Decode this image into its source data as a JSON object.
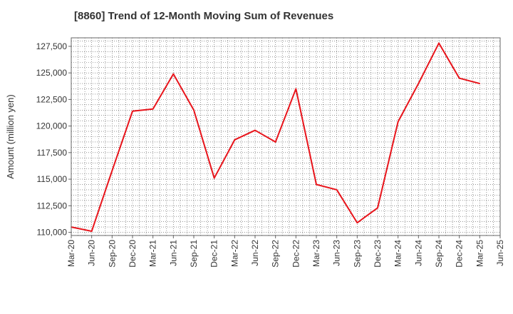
{
  "chart_data": {
    "type": "line",
    "title": "[8860]  Trend of 12-Month Moving Sum of Revenues",
    "ylabel": "Amount (million yen)",
    "xlabel": "",
    "ylim": [
      109700,
      128300
    ],
    "y_ticks": [
      "110,000",
      "112,500",
      "115,000",
      "117,500",
      "120,000",
      "122,500",
      "125,000",
      "127,500"
    ],
    "y_tick_values": [
      110000,
      112500,
      115000,
      117500,
      120000,
      122500,
      125000,
      127500
    ],
    "x_ticks": [
      "Mar-20",
      "Jun-20",
      "Sep-20",
      "Dec-20",
      "Mar-21",
      "Jun-21",
      "Sep-21",
      "Dec-21",
      "Mar-22",
      "Jun-22",
      "Sep-22",
      "Dec-22",
      "Mar-23",
      "Jun-23",
      "Sep-23",
      "Dec-23",
      "Mar-24",
      "Jun-24",
      "Sep-24",
      "Dec-24",
      "Mar-25",
      "Jun-25"
    ],
    "grid": true,
    "colors": {
      "line": "#e8141b",
      "grid": "#555555",
      "axis": "#666666"
    },
    "series": [
      {
        "x": [
          "Mar-20",
          "Jun-20",
          "Sep-20",
          "Dec-20",
          "Mar-21",
          "Jun-21",
          "Sep-21",
          "Dec-21",
          "Mar-22",
          "Jun-22",
          "Sep-22",
          "Dec-22",
          "Mar-23",
          "Jun-23",
          "Sep-23",
          "Dec-23",
          "Mar-24",
          "Jun-24",
          "Sep-24",
          "Dec-24",
          "Mar-25"
        ],
        "values": [
          110500,
          110100,
          115800,
          121400,
          121600,
          124900,
          121500,
          115100,
          118700,
          119600,
          118500,
          123500,
          114500,
          114000,
          110900,
          112300,
          120400,
          124000,
          127800,
          124500,
          124000
        ]
      }
    ]
  }
}
